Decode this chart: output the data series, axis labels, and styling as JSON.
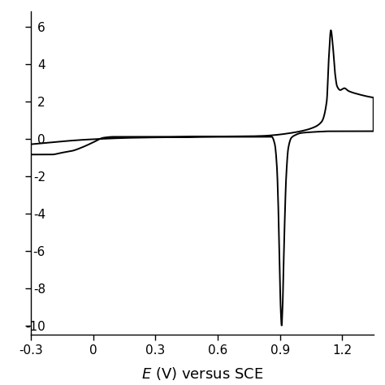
{
  "xlabel": "$E$ (V) versus SCE",
  "xlim": [
    -0.3,
    1.35
  ],
  "ylim": [
    -1.05,
    0.68
  ],
  "background_color": "#ffffff",
  "line_color": "#000000",
  "line_width": 1.4,
  "xtick_positions": [
    -0.3,
    0,
    0.3,
    0.6,
    0.9,
    1.2
  ],
  "xtick_labels": [
    "-0.3",
    "0",
    "0.3",
    "0.6",
    "0.9",
    "1.2"
  ],
  "ytick_positions": [
    -1.0,
    -0.8,
    -0.6,
    -0.4,
    -0.2,
    0.0,
    0.2,
    0.4,
    0.6
  ],
  "ytick_labels": [
    "-10",
    "-8",
    "-6",
    "-4",
    "-2",
    "0",
    "2",
    "4",
    "6"
  ]
}
